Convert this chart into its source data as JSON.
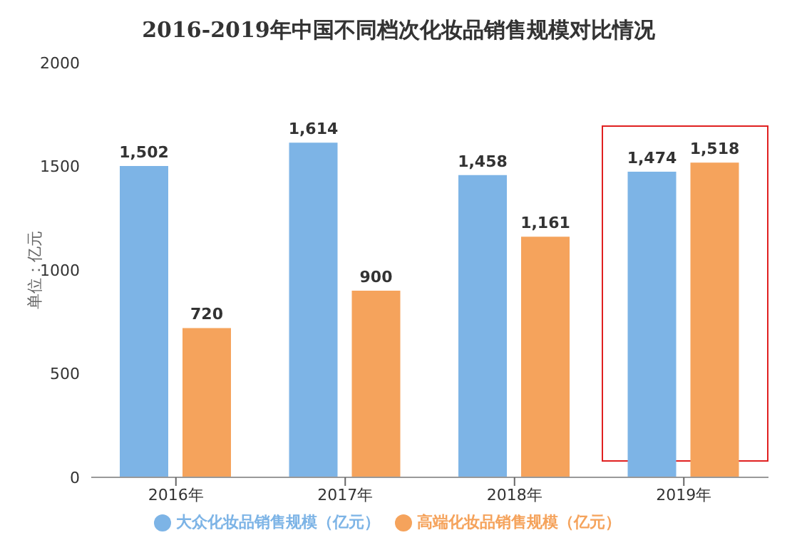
{
  "chart_data": {
    "type": "bar",
    "title": "2016-2019年中国不同档次化妆品销售规模对比情况",
    "ylabel": "单位：亿元",
    "categories": [
      "2016年",
      "2017年",
      "2018年",
      "2019年"
    ],
    "series": [
      {
        "name": "大众化妆品销售规模（亿元）",
        "color": "#7db4e6",
        "values": [
          1502,
          1614,
          1458,
          1474
        ]
      },
      {
        "name": "高端化妆品销售规模（亿元）",
        "color": "#f5a35c",
        "values": [
          720,
          900,
          1161,
          1518
        ]
      }
    ],
    "value_labels": [
      [
        "1,502",
        "1,614",
        "1,458",
        "1,474"
      ],
      [
        "720",
        "900",
        "1,161",
        "1,518"
      ]
    ],
    "ylim": [
      0,
      2000
    ],
    "yticks": [
      0,
      500,
      1000,
      1500,
      2000
    ],
    "legend": "bottom"
  }
}
